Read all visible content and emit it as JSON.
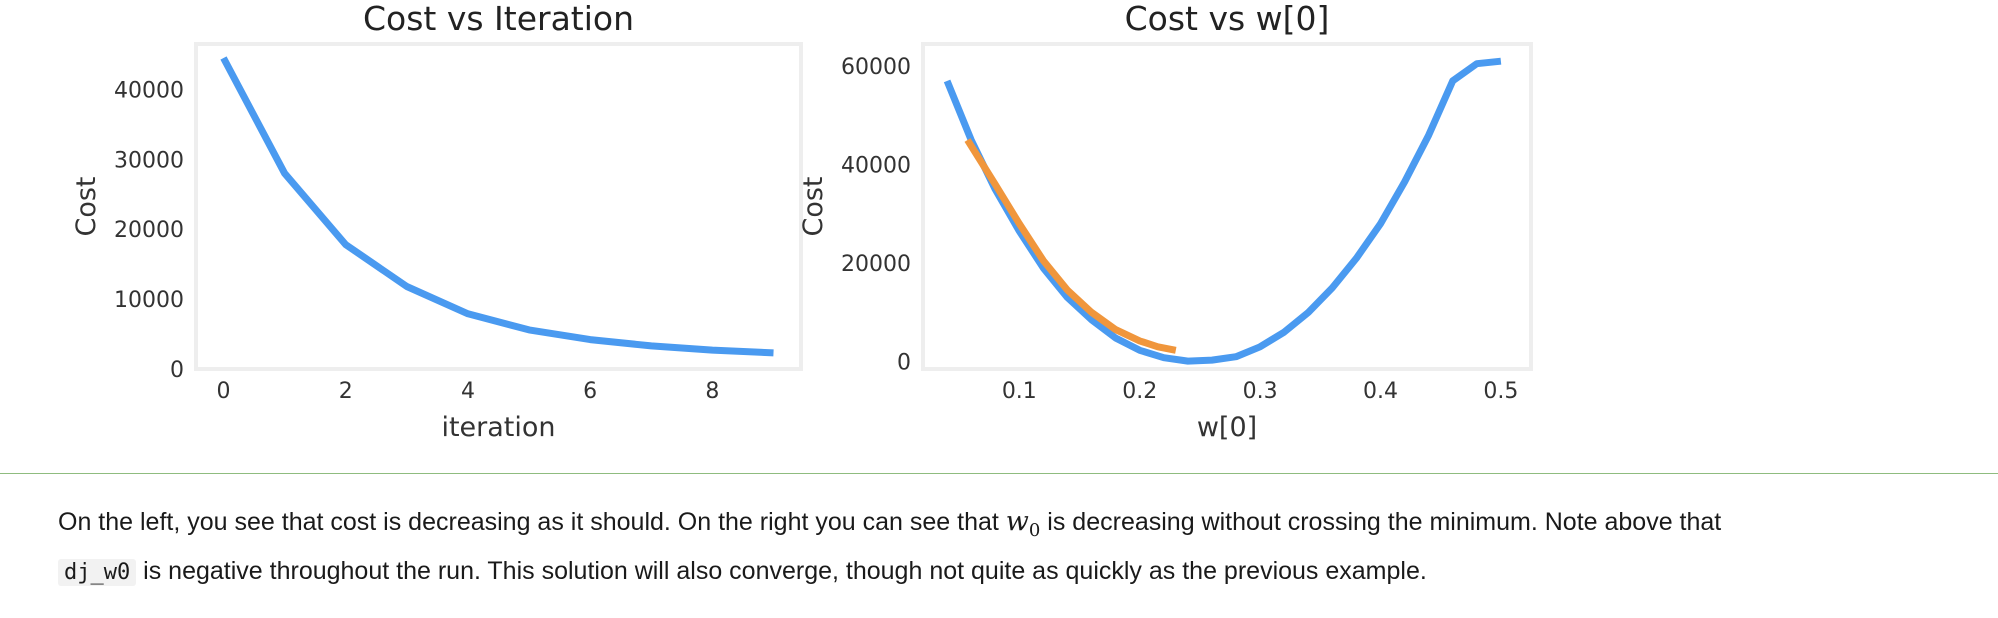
{
  "chart_data": [
    {
      "type": "line",
      "title": "Cost vs Iteration",
      "xlabel": "iteration",
      "ylabel": "Cost",
      "xlim": [
        -0.45,
        9.45
      ],
      "ylim": [
        0,
        46500
      ],
      "xticks": [
        0,
        2,
        4,
        6,
        8
      ],
      "yticks": [
        0,
        10000,
        20000,
        30000,
        40000
      ],
      "grid": false,
      "series": [
        {
          "color": "#4a9af0",
          "x": [
            0,
            1,
            2,
            3,
            4,
            5,
            6,
            7,
            8,
            9
          ],
          "y": [
            44500,
            28000,
            17800,
            11800,
            7900,
            5600,
            4200,
            3300,
            2700,
            2300
          ]
        }
      ]
    },
    {
      "type": "line",
      "title": "Cost vs w[0]",
      "xlabel": "w[0]",
      "ylabel": "Cost",
      "xlim": [
        0.02,
        0.525
      ],
      "ylim": [
        -1500,
        64500
      ],
      "xticks": [
        0.1,
        0.2,
        0.3,
        0.4,
        0.5
      ],
      "yticks": [
        0,
        20000,
        40000,
        60000
      ],
      "grid": false,
      "series": [
        {
          "color": "#4a9af0",
          "x": [
            0.04,
            0.06,
            0.08,
            0.1,
            0.12,
            0.14,
            0.16,
            0.18,
            0.2,
            0.22,
            0.24,
            0.26,
            0.28,
            0.3,
            0.32,
            0.34,
            0.36,
            0.38,
            0.4,
            0.42,
            0.44,
            0.46,
            0.48,
            0.5
          ],
          "y": [
            57000,
            45000,
            35000,
            26500,
            19000,
            13000,
            8500,
            4800,
            2300,
            800,
            100,
            300,
            1000,
            3000,
            6000,
            10000,
            15000,
            21000,
            28000,
            36500,
            46000,
            57000,
            60500,
            61000
          ]
        },
        {
          "color": "#f0963c",
          "x": [
            0.057,
            0.08,
            0.1,
            0.12,
            0.14,
            0.16,
            0.18,
            0.2,
            0.215,
            0.23
          ],
          "y": [
            45000,
            36000,
            28000,
            20500,
            14500,
            10000,
            6500,
            4200,
            3000,
            2300
          ]
        }
      ]
    }
  ],
  "note": {
    "part1": "On the left, you see that cost is decreasing as it should. On the right you can see that ",
    "math_var": "w",
    "math_sub": "0",
    "part2": " is decreasing without crossing the minimum. Note above that",
    "code": "dj_w0",
    "part3": " is negative throughout the run. This solution will also converge, though not quite as quickly as the previous example."
  }
}
